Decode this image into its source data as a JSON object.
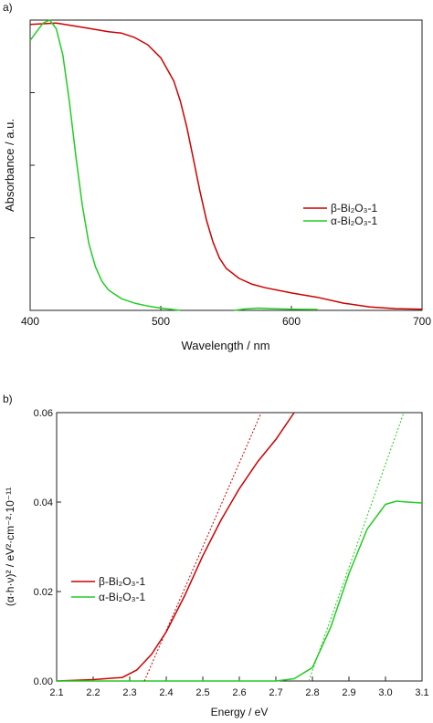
{
  "chart_data": [
    {
      "panel_label": "a)",
      "type": "line",
      "xlabel": "Wavelength / nm",
      "ylabel": "Absorbance / a.u.",
      "xlim": [
        400,
        700
      ],
      "ylim": [
        0,
        1
      ],
      "x_ticks": [
        400,
        500,
        600,
        700
      ],
      "y_tick_labels_shown": false,
      "grid": false,
      "legend_position": "right",
      "series": [
        {
          "name": "β-Bi₂O₃-1",
          "color": "#cc0000",
          "points": [
            [
              400,
              0.985
            ],
            [
              420,
              0.99
            ],
            [
              440,
              0.975
            ],
            [
              460,
              0.96
            ],
            [
              470,
              0.955
            ],
            [
              480,
              0.94
            ],
            [
              490,
              0.915
            ],
            [
              500,
              0.87
            ],
            [
              510,
              0.79
            ],
            [
              515,
              0.72
            ],
            [
              520,
              0.63
            ],
            [
              525,
              0.52
            ],
            [
              530,
              0.41
            ],
            [
              535,
              0.31
            ],
            [
              540,
              0.235
            ],
            [
              545,
              0.18
            ],
            [
              550,
              0.145
            ],
            [
              560,
              0.11
            ],
            [
              570,
              0.09
            ],
            [
              580,
              0.078
            ],
            [
              600,
              0.06
            ],
            [
              620,
              0.045
            ],
            [
              640,
              0.025
            ],
            [
              660,
              0.012
            ],
            [
              680,
              0.006
            ],
            [
              700,
              0.004
            ]
          ]
        },
        {
          "name": "α-Bi₂O₃-1",
          "color": "#22cc22",
          "points": [
            [
              400,
              0.93
            ],
            [
              405,
              0.96
            ],
            [
              410,
              0.99
            ],
            [
              415,
              1.0
            ],
            [
              420,
              0.97
            ],
            [
              425,
              0.88
            ],
            [
              430,
              0.72
            ],
            [
              435,
              0.53
            ],
            [
              440,
              0.36
            ],
            [
              445,
              0.23
            ],
            [
              450,
              0.15
            ],
            [
              455,
              0.1
            ],
            [
              460,
              0.07
            ],
            [
              470,
              0.04
            ],
            [
              480,
              0.025
            ],
            [
              490,
              0.015
            ],
            [
              500,
              0.008
            ],
            [
              515,
              0.0
            ]
          ]
        },
        {
          "name": "",
          "color": "#22cc22",
          "points": [
            [
              556,
              0.0
            ],
            [
              565,
              0.005
            ],
            [
              575,
              0.008
            ],
            [
              585,
              0.006
            ],
            [
              600,
              0.004
            ],
            [
              620,
              0.003
            ]
          ]
        }
      ]
    },
    {
      "panel_label": "b)",
      "type": "line",
      "xlabel": "Energy / eV",
      "ylabel": "(α·h·ν)² / eV²·cm⁻²·10⁻¹¹",
      "xlim": [
        2.1,
        3.1
      ],
      "ylim": [
        0,
        0.06
      ],
      "x_ticks": [
        2.1,
        2.2,
        2.3,
        2.4,
        2.5,
        2.6,
        2.7,
        2.8,
        2.9,
        3.0,
        3.1
      ],
      "x_tick_labels": [
        "2.1",
        "2.2",
        "2.3",
        "2.4",
        "2.5",
        "2.6",
        "2.7",
        "2.8",
        "2.9",
        "3.0",
        "3.1"
      ],
      "y_ticks": [
        0,
        0.02,
        0.04,
        0.06
      ],
      "y_tick_labels": [
        "0.00",
        "0.02",
        "0.04",
        "0.06"
      ],
      "grid": false,
      "legend_position": "lower-left",
      "series": [
        {
          "name": "β-Bi₂O₃-1",
          "color": "#cc0000",
          "points": [
            [
              2.1,
              0.0
            ],
            [
              2.2,
              0.0003
            ],
            [
              2.28,
              0.0008
            ],
            [
              2.32,
              0.0025
            ],
            [
              2.36,
              0.006
            ],
            [
              2.4,
              0.011
            ],
            [
              2.45,
              0.019
            ],
            [
              2.5,
              0.028
            ],
            [
              2.55,
              0.036
            ],
            [
              2.6,
              0.043
            ],
            [
              2.65,
              0.049
            ],
            [
              2.7,
              0.054
            ],
            [
              2.75,
              0.06
            ]
          ]
        },
        {
          "name": "α-Bi₂O₃-1",
          "color": "#22cc22",
          "points": [
            [
              2.1,
              0.0
            ],
            [
              2.7,
              0.0
            ],
            [
              2.75,
              0.0005
            ],
            [
              2.8,
              0.003
            ],
            [
              2.85,
              0.012
            ],
            [
              2.9,
              0.024
            ],
            [
              2.95,
              0.034
            ],
            [
              3.0,
              0.0395
            ],
            [
              3.03,
              0.0402
            ],
            [
              3.06,
              0.04
            ],
            [
              3.1,
              0.0398
            ]
          ]
        },
        {
          "name": "",
          "color": "#cc0000",
          "style": "dotted",
          "points": [
            [
              2.34,
              0.0
            ],
            [
              2.66,
              0.06
            ]
          ]
        },
        {
          "name": "",
          "color": "#22cc22",
          "style": "dotted",
          "points": [
            [
              2.79,
              0.0
            ],
            [
              3.05,
              0.06
            ]
          ]
        }
      ]
    }
  ]
}
